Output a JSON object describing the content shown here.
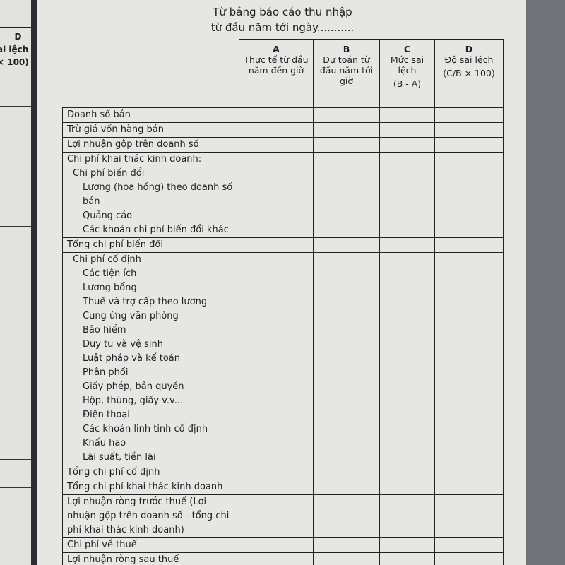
{
  "left_page": {
    "header": [
      "D",
      "ai lệch",
      "× 100)"
    ]
  },
  "title": [
    "Từ bảng báo cáo thu nhập",
    "từ đầu năm tới ngày..........."
  ],
  "columns": [
    {
      "letter": "A",
      "title": "Thực tế từ đầu năm đến giờ"
    },
    {
      "letter": "B",
      "title": "Dự toán từ đầu năm tới giờ"
    },
    {
      "letter": "C",
      "title": "Mức sai lệch",
      "formula": "(B - A)"
    },
    {
      "letter": "D",
      "title": "Độ sai lệch",
      "formula": "(C/B × 100)"
    }
  ],
  "rows": [
    {
      "label": "Doanh số bán"
    },
    {
      "label": "Trừ giá vốn hàng bán"
    },
    {
      "label": "Lợi nhuận gộp trên doanh số"
    },
    {
      "label": "Chi phí khai thác kinh doanh:",
      "sublabel": "Chi phí biến đổi",
      "items": [
        "Lương (hoa hồng) theo doanh số bán",
        "Quảng cáo",
        "Các khoản chi phí biến đổi khác"
      ]
    },
    {
      "label": "Tổng chi phí biến đổi"
    },
    {
      "sublabel": "Chi phí cố định",
      "items": [
        "Các tiện ích",
        "Lương bổng",
        "Thuế và trợ cấp theo lương",
        "Cung ứng văn phòng",
        "Bảo hiểm",
        "Duy tu và vệ sinh",
        "Luật pháp và kế toán",
        "Phân phối",
        "Giấy phép, bản quyền",
        "Hộp, thùng, giấy v.v...",
        "Điện thoại",
        "Các khoản linh tinh cố định",
        "Khấu hao",
        "Lãi suất, tiền lãi"
      ]
    },
    {
      "label": "Tổng chi phí cố định"
    },
    {
      "label": "Tổng chi phí khai thác kinh doanh"
    },
    {
      "label": "Lợi nhuận ròng trước thuế (Lợi nhuận gộp trên doanh số - tổng chi phí khai thác kinh doanh)"
    },
    {
      "label": "Chi phí về thuế"
    },
    {
      "label": "Lợi nhuận ròng sau thuế"
    }
  ]
}
